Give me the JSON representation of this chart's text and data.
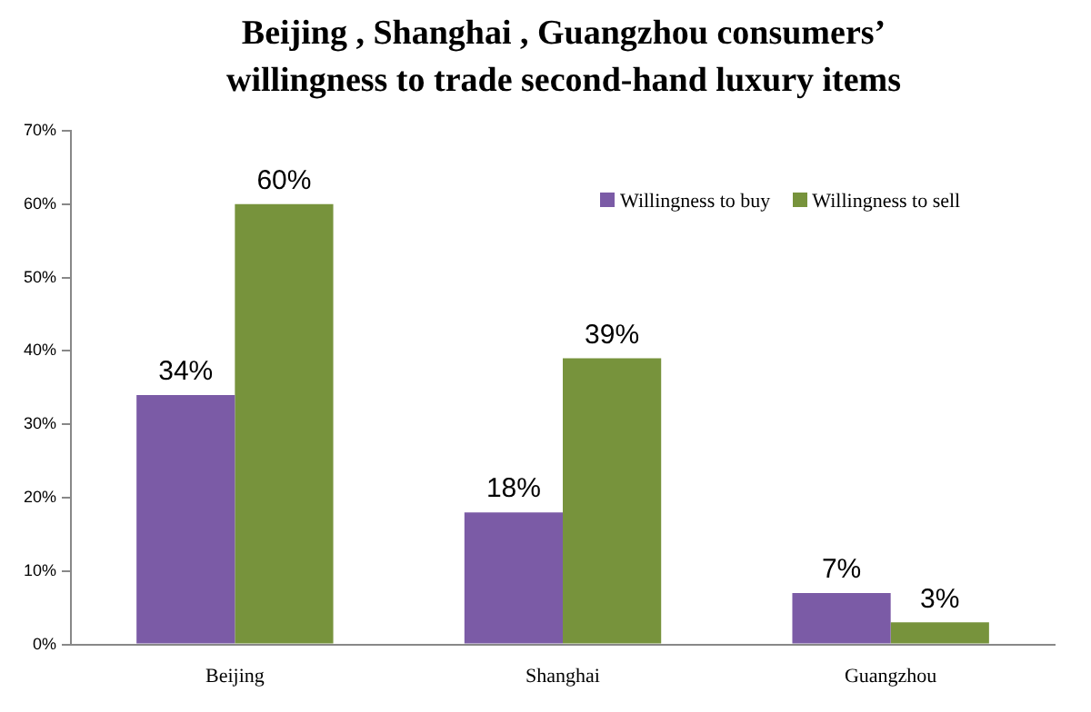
{
  "chart_data": {
    "type": "bar",
    "title": "Beijing , Shanghai , Guangzhou consumers’ willingness to trade second-hand luxury items",
    "categories": [
      "Beijing",
      "Shanghai",
      "Guangzhou"
    ],
    "series": [
      {
        "name": "Willingness to buy",
        "color": "#7b5ba6",
        "values": [
          34,
          18,
          7
        ],
        "value_labels": [
          "34%",
          "18%",
          "7%"
        ]
      },
      {
        "name": "Willingness to sell",
        "color": "#77933c",
        "values": [
          60,
          39,
          3
        ],
        "value_labels": [
          "60%",
          "39%",
          "3%"
        ]
      }
    ],
    "ylim": [
      0,
      70
    ],
    "yticks": [
      {
        "value": 0,
        "label": "0%"
      },
      {
        "value": 10,
        "label": "10%"
      },
      {
        "value": 20,
        "label": "20%"
      },
      {
        "value": 30,
        "label": "30%"
      },
      {
        "value": 40,
        "label": "40%"
      },
      {
        "value": 50,
        "label": "50%"
      },
      {
        "value": 60,
        "label": "60%"
      },
      {
        "value": 70,
        "label": "70%"
      }
    ],
    "grid": false,
    "legend": "top right"
  }
}
